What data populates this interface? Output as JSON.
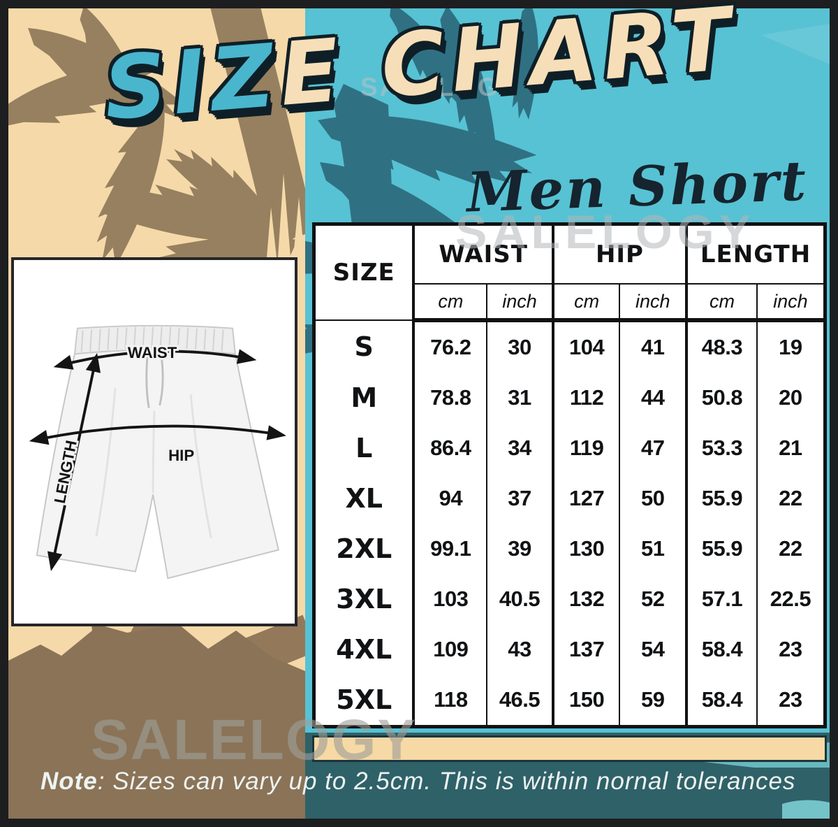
{
  "header": {
    "title_left": "SIZ",
    "title_right": "E CHART",
    "subtitle": "Men Short"
  },
  "watermarks": {
    "top": "SALELOGY",
    "middle": "SALELOGY",
    "bottom": "SALELOGY"
  },
  "diagram": {
    "waist_label": "WAIST",
    "hip_label": "HIP",
    "length_label": "LENGTH"
  },
  "table": {
    "size_header": "SIZE",
    "group_headers": {
      "waist": "WAIST",
      "hip": "HIP",
      "length": "LENGTH"
    },
    "units": {
      "cm": "cm",
      "inch": "inch"
    },
    "rows": [
      {
        "size": "S",
        "waist_cm": "76.2",
        "waist_in": "30",
        "hip_cm": "104",
        "hip_in": "41",
        "len_cm": "48.3",
        "len_in": "19"
      },
      {
        "size": "M",
        "waist_cm": "78.8",
        "waist_in": "31",
        "hip_cm": "112",
        "hip_in": "44",
        "len_cm": "50.8",
        "len_in": "20"
      },
      {
        "size": "L",
        "waist_cm": "86.4",
        "waist_in": "34",
        "hip_cm": "119",
        "hip_in": "47",
        "len_cm": "53.3",
        "len_in": "21"
      },
      {
        "size": "XL",
        "waist_cm": "94",
        "waist_in": "37",
        "hip_cm": "127",
        "hip_in": "50",
        "len_cm": "55.9",
        "len_in": "22"
      },
      {
        "size": "2XL",
        "waist_cm": "99.1",
        "waist_in": "39",
        "hip_cm": "130",
        "hip_in": "51",
        "len_cm": "55.9",
        "len_in": "22"
      },
      {
        "size": "3XL",
        "waist_cm": "103",
        "waist_in": "40.5",
        "hip_cm": "132",
        "hip_in": "52",
        "len_cm": "57.1",
        "len_in": "22.5"
      },
      {
        "size": "4XL",
        "waist_cm": "109",
        "waist_in": "43",
        "hip_cm": "137",
        "hip_in": "54",
        "len_cm": "58.4",
        "len_in": "23"
      },
      {
        "size": "5XL",
        "waist_cm": "118",
        "waist_in": "46.5",
        "hip_cm": "150",
        "hip_in": "59",
        "len_cm": "58.4",
        "len_in": "23"
      }
    ]
  },
  "note": {
    "label": "Note",
    "body": ": Sizes can vary up to 2.5cm. This is within nornal tolerances"
  },
  "colors": {
    "cream_bg": "#f5d9a9",
    "teal_bg": "#57c2d3",
    "palm_brown": "#97805f",
    "palm_dark_teal": "#2f7183",
    "bottom_brown": "#8a7357",
    "bottom_dark_teal": "#2f6168",
    "title_teal": "#49b6cd",
    "title_cream": "#f6dfb8",
    "frame_black": "#1d1e20",
    "tan_bar": "#f6d9a4"
  },
  "chart_data": {
    "type": "table",
    "title": "SIZE CHART",
    "subtitle": "Men Short",
    "columns": [
      "SIZE",
      "WAIST cm",
      "WAIST inch",
      "HIP cm",
      "HIP inch",
      "LENGTH cm",
      "LENGTH inch"
    ],
    "rows": [
      [
        "S",
        76.2,
        30,
        104,
        41,
        48.3,
        19
      ],
      [
        "M",
        78.8,
        31,
        112,
        44,
        50.8,
        20
      ],
      [
        "L",
        86.4,
        34,
        119,
        47,
        53.3,
        21
      ],
      [
        "XL",
        94,
        37,
        127,
        50,
        55.9,
        22
      ],
      [
        "2XL",
        99.1,
        39,
        130,
        51,
        55.9,
        22
      ],
      [
        "3XL",
        103,
        40.5,
        132,
        52,
        57.1,
        22.5
      ],
      [
        "4XL",
        109,
        43,
        137,
        54,
        58.4,
        23
      ],
      [
        "5XL",
        118,
        46.5,
        150,
        59,
        58.4,
        23
      ]
    ],
    "note": "Note: Sizes can vary up to 2.5cm. This is within nornal tolerances"
  }
}
